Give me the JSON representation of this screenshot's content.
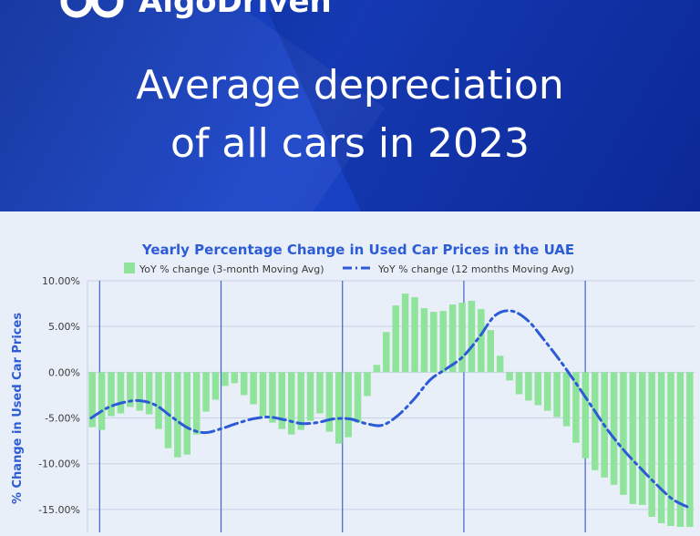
{
  "brand": {
    "name": "AlgoDriven"
  },
  "headline": {
    "line1": "Average depreciation",
    "line2": "of all cars in 2023"
  },
  "chart_data": {
    "type": "bar",
    "title": "Yearly Percentage Change in Used Car Prices in the UAE",
    "xlabel": "",
    "ylabel": "% Change in Used Car Prices",
    "ylim": [
      -17.5,
      10
    ],
    "yticks": [
      "10.00%",
      "5.00%",
      "0.00%",
      "-5.00%",
      "-10.00%",
      "-15.00%"
    ],
    "grid": true,
    "legend_position": "top-center",
    "colors": {
      "bars": "#8fe39a",
      "line": "#2c5bd6",
      "title": "#2c5bd6",
      "axis_text": "#3a3a3a"
    },
    "series": [
      {
        "name": "YoY % change (3-month Moving Avg)",
        "kind": "bar",
        "values": [
          -6,
          -6.3,
          -4.8,
          -4.5,
          -3.8,
          -4.2,
          -4.6,
          -6.2,
          -8.3,
          -9.3,
          -9,
          -6.8,
          -4.3,
          -3,
          -1.5,
          -1.2,
          -2.5,
          -3.5,
          -4.8,
          -5.5,
          -6.2,
          -6.8,
          -6.3,
          -5.3,
          -4.5,
          -6.5,
          -7.8,
          -7.1,
          -5.5,
          -2.6,
          0.8,
          4.4,
          7.3,
          8.6,
          8.2,
          7,
          6.6,
          6.7,
          7.4,
          7.6,
          7.8,
          6.9,
          4.6,
          1.8,
          -0.9,
          -2.4,
          -3.1,
          -3.6,
          -4.2,
          -4.9,
          -5.9,
          -7.7,
          -9.4,
          -10.7,
          -11.5,
          -12.3,
          -13.4,
          -14.4,
          -14.5,
          -15.8,
          -16.5,
          -16.8,
          -16.9,
          -16.9
        ]
      },
      {
        "name": "YoY % change (12 months Moving Avg)",
        "kind": "line",
        "style": "dash-dot",
        "values": [
          -5,
          -3.9,
          -3.3,
          -3.1,
          -3.6,
          -4.9,
          -6.1,
          -6.6,
          -6.2,
          -5.6,
          -5.1,
          -4.9,
          -5.2,
          -5.6,
          -5.5,
          -5.1,
          -5.1,
          -5.6,
          -5.8,
          -4.7,
          -2.9,
          -0.8,
          0.4,
          1.7,
          3.8,
          6.2,
          6.7,
          5.7,
          3.6,
          1.3,
          -1.2,
          -3.8,
          -6.4,
          -8.6,
          -10.5,
          -12.3,
          -13.9,
          -14.8
        ]
      }
    ]
  }
}
